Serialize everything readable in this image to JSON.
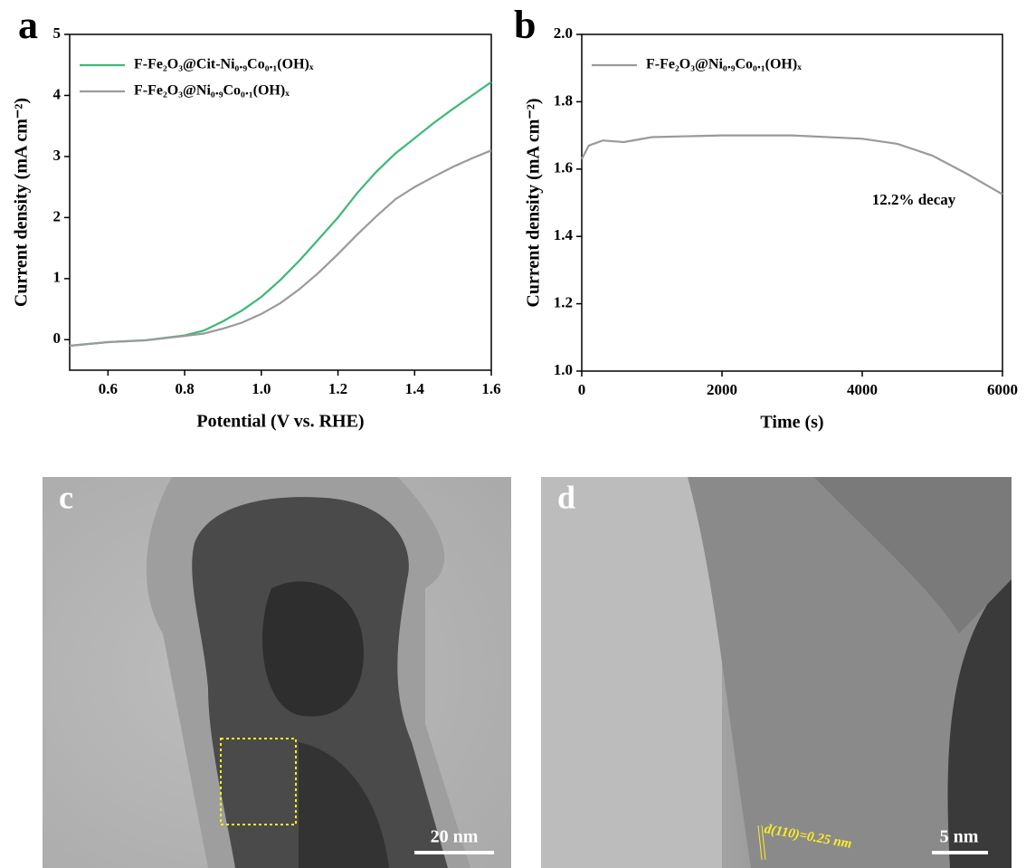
{
  "chart_data": [
    {
      "type": "line",
      "panel_label": "a",
      "xlabel": "Potential (V vs. RHE)",
      "ylabel": "Current density (mA cm⁻²)",
      "x": [
        0.5,
        0.6,
        0.7,
        0.8,
        0.85,
        0.9,
        0.95,
        1.0,
        1.05,
        1.1,
        1.15,
        1.2,
        1.25,
        1.3,
        1.35,
        1.4,
        1.45,
        1.5,
        1.55,
        1.6
      ],
      "series": [
        {
          "name": "F-Fe₂O₃@Cit-Ni₀.₉Co₀.₁(OH)ₓ",
          "color": "#3cb878",
          "values": [
            -0.1,
            -0.04,
            -0.01,
            0.07,
            0.15,
            0.3,
            0.48,
            0.7,
            0.98,
            1.3,
            1.65,
            2.0,
            2.4,
            2.75,
            3.05,
            3.3,
            3.55,
            3.78,
            4.0,
            4.22
          ]
        },
        {
          "name": "F-Fe₂O₃@Ni₀.₉Co₀.₁(OH)ₓ",
          "color": "#9a9a9a",
          "values": [
            -0.1,
            -0.04,
            -0.01,
            0.06,
            0.1,
            0.18,
            0.28,
            0.42,
            0.6,
            0.83,
            1.1,
            1.4,
            1.72,
            2.02,
            2.3,
            2.5,
            2.67,
            2.83,
            2.97,
            3.1
          ]
        }
      ],
      "xlim": [
        0.5,
        1.6
      ],
      "xticks": [
        0.6,
        0.8,
        {
          "value": 1,
          "label": "1.0"
        },
        1.2,
        1.4,
        1.6
      ],
      "ylim": [
        -0.5,
        5
      ],
      "yticks": [
        0,
        1,
        2,
        3,
        4,
        5
      ]
    },
    {
      "type": "line",
      "panel_label": "b",
      "xlabel": "Time (s)",
      "ylabel": "Current density (mA cm⁻²)",
      "x": [
        0,
        100,
        300,
        600,
        1000,
        2000,
        3000,
        4000,
        4500,
        5000,
        5500,
        6000
      ],
      "series": [
        {
          "name": "F-Fe₂O₃@Ni₀.₉Co₀.₁(OH)ₓ",
          "color": "#9a9a9a",
          "values": [
            1.63,
            1.67,
            1.685,
            1.68,
            1.695,
            1.7,
            1.7,
            1.69,
            1.675,
            1.64,
            1.585,
            1.525
          ]
        }
      ],
      "annotation": "12.2% decay",
      "xlim": [
        0,
        6000
      ],
      "xticks": [
        0,
        2000,
        4000,
        6000
      ],
      "ylim": [
        1,
        2
      ],
      "yticks": [
        {
          "value": 1,
          "label": "1.0"
        },
        1.2,
        1.4,
        1.6,
        1.8,
        {
          "value": 2,
          "label": "2.0"
        }
      ]
    }
  ],
  "images": [
    {
      "panel_label": "c",
      "scale_bar": "20 nm"
    },
    {
      "panel_label": "d",
      "scale_bar": "5 nm",
      "annotation": "d(110)=0.25 nm"
    }
  ]
}
